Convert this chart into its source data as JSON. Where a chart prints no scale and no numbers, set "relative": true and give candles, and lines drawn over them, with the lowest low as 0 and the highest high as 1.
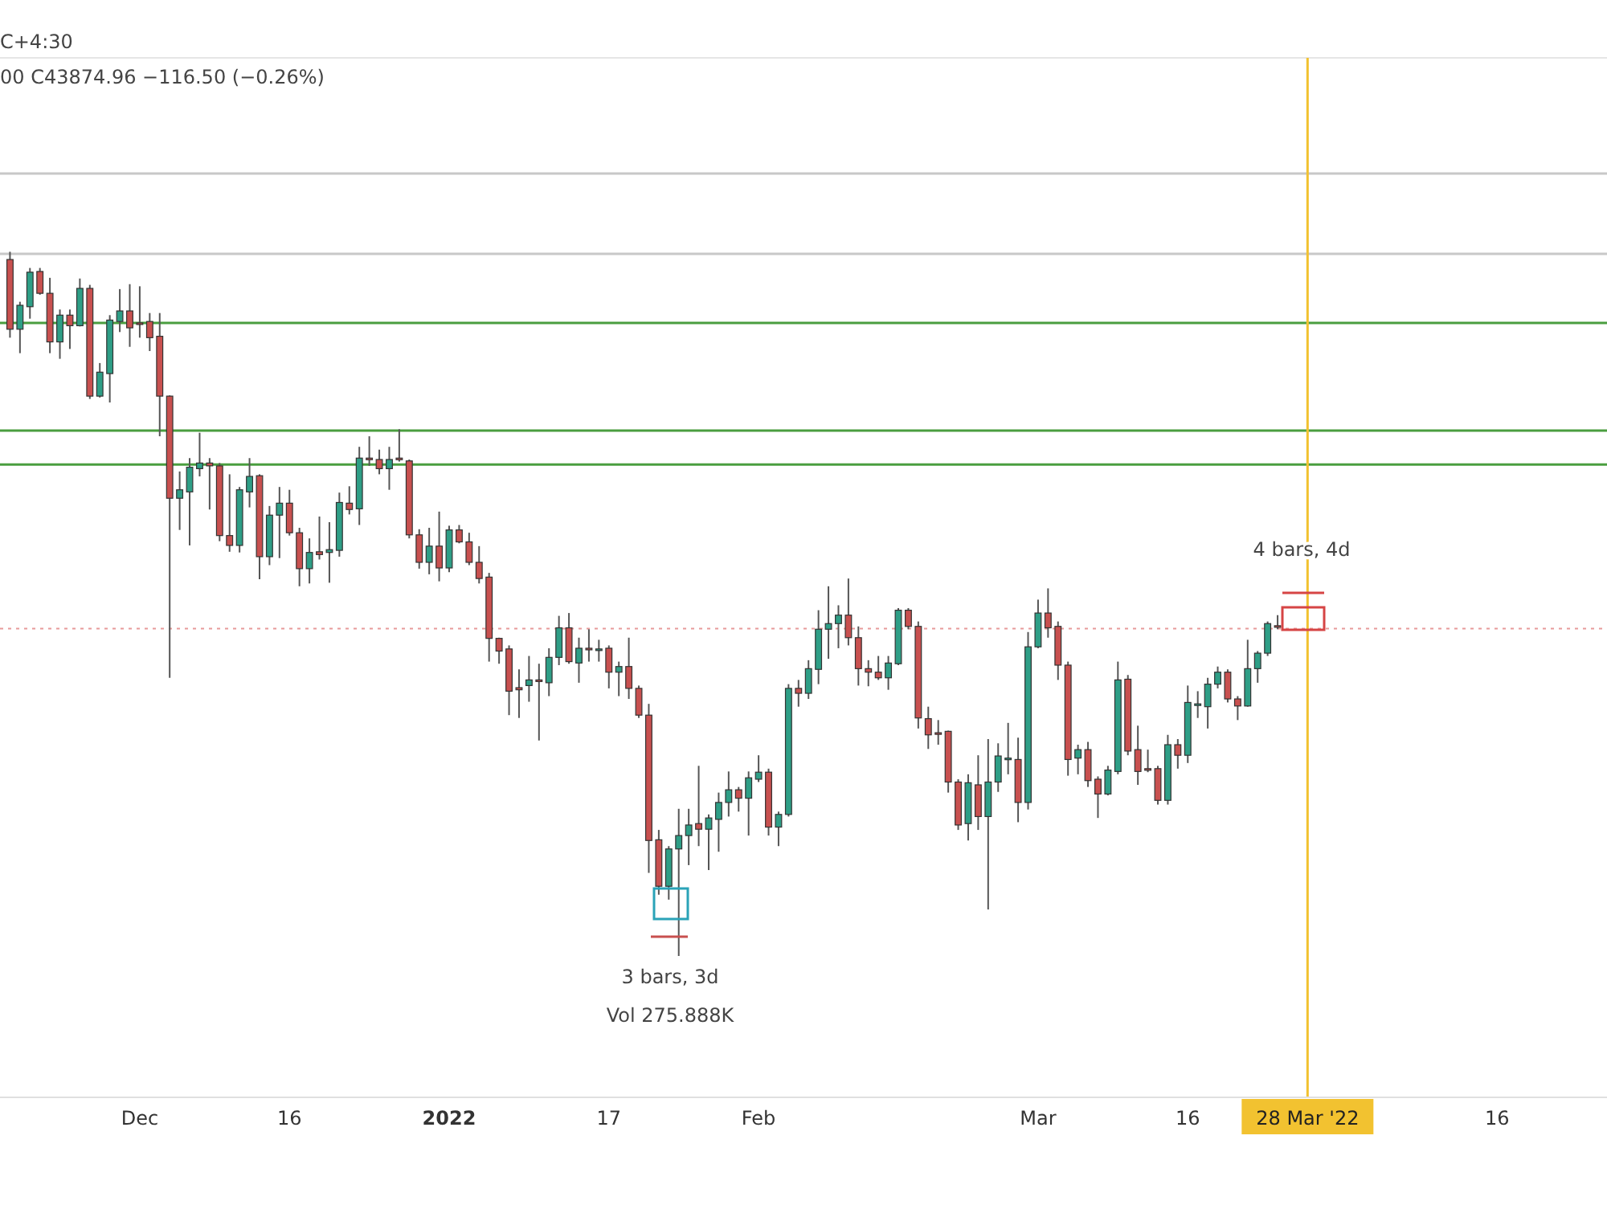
{
  "chart_data": {
    "type": "candlestick",
    "relative": true,
    "x": [
      "2021-11-18",
      "2021-11-19",
      "2021-11-20",
      "2021-11-21",
      "2021-11-22",
      "2021-11-23",
      "2021-11-24",
      "2021-11-25",
      "2021-11-26",
      "2021-11-27",
      "2021-11-28",
      "2021-11-29",
      "2021-11-30",
      "2021-12-01",
      "2021-12-02",
      "2021-12-03",
      "2021-12-04",
      "2021-12-05",
      "2021-12-06",
      "2021-12-07",
      "2021-12-08",
      "2021-12-09",
      "2021-12-10",
      "2021-12-11",
      "2021-12-12",
      "2021-12-13",
      "2021-12-14",
      "2021-12-15",
      "2021-12-16",
      "2021-12-17",
      "2021-12-18",
      "2021-12-19",
      "2021-12-20",
      "2021-12-21",
      "2021-12-22",
      "2021-12-23",
      "2021-12-24",
      "2021-12-25",
      "2021-12-26",
      "2021-12-27",
      "2021-12-28",
      "2021-12-29",
      "2021-12-30",
      "2021-12-31",
      "2022-01-01",
      "2022-01-02",
      "2022-01-03",
      "2022-01-04",
      "2022-01-05",
      "2022-01-06",
      "2022-01-07",
      "2022-01-08",
      "2022-01-09",
      "2022-01-10",
      "2022-01-11",
      "2022-01-12",
      "2022-01-13",
      "2022-01-14",
      "2022-01-15",
      "2022-01-16",
      "2022-01-17",
      "2022-01-18",
      "2022-01-19",
      "2022-01-20",
      "2022-01-21",
      "2022-01-22",
      "2022-01-23",
      "2022-01-24",
      "2022-01-25",
      "2022-01-26",
      "2022-01-27",
      "2022-01-28",
      "2022-01-29",
      "2022-01-30",
      "2022-01-31",
      "2022-02-01",
      "2022-02-02",
      "2022-02-03",
      "2022-02-04",
      "2022-02-05",
      "2022-02-06",
      "2022-02-07",
      "2022-02-08",
      "2022-02-09",
      "2022-02-10",
      "2022-02-11",
      "2022-02-12",
      "2022-02-13",
      "2022-02-14",
      "2022-02-15",
      "2022-02-16",
      "2022-02-17",
      "2022-02-18",
      "2022-02-19",
      "2022-02-20",
      "2022-02-21",
      "2022-02-22",
      "2022-02-23",
      "2022-02-24",
      "2022-02-25",
      "2022-02-26",
      "2022-02-27",
      "2022-02-28",
      "2022-03-01",
      "2022-03-02",
      "2022-03-03",
      "2022-03-04",
      "2022-03-05",
      "2022-03-06",
      "2022-03-07",
      "2022-03-08",
      "2022-03-09",
      "2022-03-10",
      "2022-03-11",
      "2022-03-12",
      "2022-03-13",
      "2022-03-14",
      "2022-03-15",
      "2022-03-16",
      "2022-03-17",
      "2022-03-18",
      "2022-03-19",
      "2022-03-20",
      "2022-03-21",
      "2022-03-22",
      "2022-03-23",
      "2022-03-24",
      "2022-03-25"
    ],
    "ohlc": [
      [
        0.989,
        1,
        0.878,
        0.89
      ],
      [
        0.89,
        0.929,
        0.856,
        0.924
      ],
      [
        0.922,
        0.977,
        0.905,
        0.971
      ],
      [
        0.972,
        0.977,
        0.939,
        0.941
      ],
      [
        0.941,
        0.963,
        0.856,
        0.872
      ],
      [
        0.872,
        0.918,
        0.848,
        0.91
      ],
      [
        0.91,
        0.918,
        0.862,
        0.895
      ],
      [
        0.895,
        0.962,
        0.894,
        0.948
      ],
      [
        0.948,
        0.953,
        0.791,
        0.795
      ],
      [
        0.795,
        0.842,
        0.793,
        0.829
      ],
      [
        0.827,
        0.91,
        0.786,
        0.903
      ],
      [
        0.901,
        0.947,
        0.886,
        0.916
      ],
      [
        0.916,
        0.954,
        0.865,
        0.892
      ],
      [
        0.899,
        0.951,
        0.878,
        0.897
      ],
      [
        0.901,
        0.913,
        0.859,
        0.878
      ],
      [
        0.88,
        0.913,
        0.738,
        0.795
      ],
      [
        0.795,
        0.796,
        0.395,
        0.65
      ],
      [
        0.65,
        0.688,
        0.605,
        0.662
      ],
      [
        0.659,
        0.707,
        0.583,
        0.694
      ],
      [
        0.692,
        0.743,
        0.681,
        0.7
      ],
      [
        0.7,
        0.707,
        0.634,
        0.696
      ],
      [
        0.696,
        0.7,
        0.589,
        0.597
      ],
      [
        0.597,
        0.684,
        0.574,
        0.583
      ],
      [
        0.583,
        0.666,
        0.573,
        0.662
      ],
      [
        0.659,
        0.707,
        0.637,
        0.681
      ],
      [
        0.682,
        0.684,
        0.535,
        0.567
      ],
      [
        0.567,
        0.639,
        0.555,
        0.626
      ],
      [
        0.626,
        0.666,
        0.565,
        0.643
      ],
      [
        0.643,
        0.662,
        0.597,
        0.601
      ],
      [
        0.601,
        0.608,
        0.525,
        0.55
      ],
      [
        0.55,
        0.593,
        0.529,
        0.573
      ],
      [
        0.574,
        0.624,
        0.563,
        0.57
      ],
      [
        0.573,
        0.616,
        0.53,
        0.577
      ],
      [
        0.576,
        0.658,
        0.567,
        0.644
      ],
      [
        0.643,
        0.667,
        0.627,
        0.634
      ],
      [
        0.635,
        0.723,
        0.612,
        0.707
      ],
      [
        0.707,
        0.738,
        0.696,
        0.706
      ],
      [
        0.705,
        0.719,
        0.684,
        0.692
      ],
      [
        0.692,
        0.723,
        0.662,
        0.705
      ],
      [
        0.707,
        0.748,
        0.702,
        0.705
      ],
      [
        0.703,
        0.705,
        0.593,
        0.598
      ],
      [
        0.598,
        0.606,
        0.55,
        0.559
      ],
      [
        0.559,
        0.608,
        0.542,
        0.582
      ],
      [
        0.582,
        0.631,
        0.532,
        0.551
      ],
      [
        0.551,
        0.611,
        0.545,
        0.605
      ],
      [
        0.605,
        0.612,
        0.586,
        0.588
      ],
      [
        0.588,
        0.601,
        0.555,
        0.559
      ],
      [
        0.559,
        0.582,
        0.529,
        0.536
      ],
      [
        0.538,
        0.544,
        0.418,
        0.451
      ],
      [
        0.451,
        0.452,
        0.415,
        0.433
      ],
      [
        0.436,
        0.441,
        0.342,
        0.376
      ],
      [
        0.381,
        0.407,
        0.338,
        0.378
      ],
      [
        0.384,
        0.426,
        0.361,
        0.392
      ],
      [
        0.392,
        0.415,
        0.306,
        0.39
      ],
      [
        0.388,
        0.437,
        0.369,
        0.424
      ],
      [
        0.424,
        0.483,
        0.413,
        0.466
      ],
      [
        0.466,
        0.487,
        0.415,
        0.418
      ],
      [
        0.416,
        0.452,
        0.388,
        0.437
      ],
      [
        0.437,
        0.464,
        0.418,
        0.435
      ],
      [
        0.436,
        0.449,
        0.418,
        0.436
      ],
      [
        0.437,
        0.441,
        0.38,
        0.403
      ],
      [
        0.403,
        0.418,
        0.369,
        0.411
      ],
      [
        0.411,
        0.452,
        0.365,
        0.38
      ],
      [
        0.38,
        0.384,
        0.338,
        0.342
      ],
      [
        0.342,
        0.358,
        0.118,
        0.164
      ],
      [
        0.165,
        0.179,
        0.087,
        0.099
      ],
      [
        0.099,
        0.156,
        0.08,
        0.152
      ],
      [
        0.152,
        0.209,
        0,
        0.171
      ],
      [
        0.171,
        0.209,
        0.129,
        0.186
      ],
      [
        0.188,
        0.27,
        0.156,
        0.18
      ],
      [
        0.18,
        0.201,
        0.122,
        0.196
      ],
      [
        0.194,
        0.232,
        0.148,
        0.218
      ],
      [
        0.218,
        0.262,
        0.198,
        0.236
      ],
      [
        0.236,
        0.24,
        0.205,
        0.224
      ],
      [
        0.224,
        0.262,
        0.171,
        0.253
      ],
      [
        0.251,
        0.285,
        0.247,
        0.261
      ],
      [
        0.261,
        0.266,
        0.171,
        0.183
      ],
      [
        0.183,
        0.205,
        0.156,
        0.201
      ],
      [
        0.201,
        0.386,
        0.198,
        0.38
      ],
      [
        0.38,
        0.392,
        0.354,
        0.373
      ],
      [
        0.373,
        0.42,
        0.365,
        0.408
      ],
      [
        0.407,
        0.491,
        0.386,
        0.464
      ],
      [
        0.464,
        0.525,
        0.422,
        0.472
      ],
      [
        0.472,
        0.498,
        0.437,
        0.484
      ],
      [
        0.484,
        0.536,
        0.441,
        0.452
      ],
      [
        0.452,
        0.468,
        0.384,
        0.408
      ],
      [
        0.408,
        0.42,
        0.383,
        0.403
      ],
      [
        0.403,
        0.426,
        0.392,
        0.395
      ],
      [
        0.395,
        0.426,
        0.378,
        0.416
      ],
      [
        0.415,
        0.494,
        0.413,
        0.491
      ],
      [
        0.491,
        0.494,
        0.464,
        0.468
      ],
      [
        0.468,
        0.475,
        0.323,
        0.338
      ],
      [
        0.337,
        0.354,
        0.294,
        0.314
      ],
      [
        0.317,
        0.335,
        0.3,
        0.316
      ],
      [
        0.319,
        0.32,
        0.232,
        0.247
      ],
      [
        0.247,
        0.251,
        0.179,
        0.186
      ],
      [
        0.188,
        0.258,
        0.164,
        0.246
      ],
      [
        0.243,
        0.285,
        0.179,
        0.198
      ],
      [
        0.198,
        0.308,
        0.066,
        0.247
      ],
      [
        0.247,
        0.302,
        0.233,
        0.284
      ],
      [
        0.281,
        0.331,
        0.258,
        0.281
      ],
      [
        0.279,
        0.31,
        0.19,
        0.218
      ],
      [
        0.218,
        0.46,
        0.208,
        0.439
      ],
      [
        0.439,
        0.506,
        0.437,
        0.487
      ],
      [
        0.487,
        0.522,
        0.452,
        0.466
      ],
      [
        0.468,
        0.475,
        0.392,
        0.413
      ],
      [
        0.413,
        0.418,
        0.256,
        0.279
      ],
      [
        0.281,
        0.3,
        0.258,
        0.293
      ],
      [
        0.293,
        0.304,
        0.24,
        0.249
      ],
      [
        0.251,
        0.255,
        0.196,
        0.23
      ],
      [
        0.23,
        0.27,
        0.228,
        0.264
      ],
      [
        0.262,
        0.418,
        0.258,
        0.392
      ],
      [
        0.393,
        0.399,
        0.285,
        0.291
      ],
      [
        0.293,
        0.327,
        0.243,
        0.262
      ],
      [
        0.266,
        0.293,
        0.261,
        0.264
      ],
      [
        0.266,
        0.27,
        0.215,
        0.221
      ],
      [
        0.221,
        0.314,
        0.215,
        0.3
      ],
      [
        0.3,
        0.308,
        0.266,
        0.285
      ],
      [
        0.285,
        0.384,
        0.274,
        0.36
      ],
      [
        0.358,
        0.376,
        0.338,
        0.358
      ],
      [
        0.354,
        0.395,
        0.323,
        0.386
      ],
      [
        0.386,
        0.411,
        0.38,
        0.403
      ],
      [
        0.403,
        0.407,
        0.36,
        0.365
      ],
      [
        0.365,
        0.369,
        0.335,
        0.355
      ],
      [
        0.355,
        0.449,
        0.354,
        0.408
      ],
      [
        0.408,
        0.433,
        0.388,
        0.43
      ],
      [
        0.43,
        0.475,
        0.426,
        0.472
      ],
      [
        0.469,
        0.484,
        0.464,
        0.468
      ]
    ],
    "xlim": [
      "2021-11-17",
      "2022-04-27"
    ],
    "xticks": [
      {
        "value": "2021-12-01",
        "label": "Dec"
      },
      {
        "value": "2021-12-16",
        "label": "16"
      },
      {
        "value": "2022-01-01",
        "label": "2022"
      },
      {
        "value": "2022-01-17",
        "label": "17"
      },
      {
        "value": "2022-02-01",
        "label": "Feb"
      },
      {
        "value": "2022-03-01",
        "label": "Mar"
      },
      {
        "value": "2022-03-16",
        "label": "16"
      },
      {
        "value": "2022-03-28",
        "label": "28 Mar '22"
      },
      {
        "value": "2022-04-16",
        "label": "16"
      }
    ],
    "ref_lines": [
      {
        "axis": "y",
        "value": 1.111,
        "color": "#c8c8c8"
      },
      {
        "axis": "y",
        "value": 0.997,
        "color": "#c8c8c8"
      },
      {
        "axis": "y",
        "value": 0.899,
        "color": "#4a9e3f"
      },
      {
        "axis": "y",
        "value": 0.746,
        "color": "#4a9e3f"
      },
      {
        "axis": "y",
        "value": 0.698,
        "color": "#4a9e3f"
      },
      {
        "axis": "y",
        "value": 0.465,
        "color": "#e89a9a",
        "line_style": "dotted"
      },
      {
        "axis": "x",
        "value": "2022-03-28",
        "color": "#f2c230"
      }
    ],
    "annotations": [
      "C+4:30",
      "00  C43874.96  −116.50 (−0.26%)",
      "3 bars, 3d",
      "Vol 275.888K",
      "4 bars, 4d"
    ]
  }
}
